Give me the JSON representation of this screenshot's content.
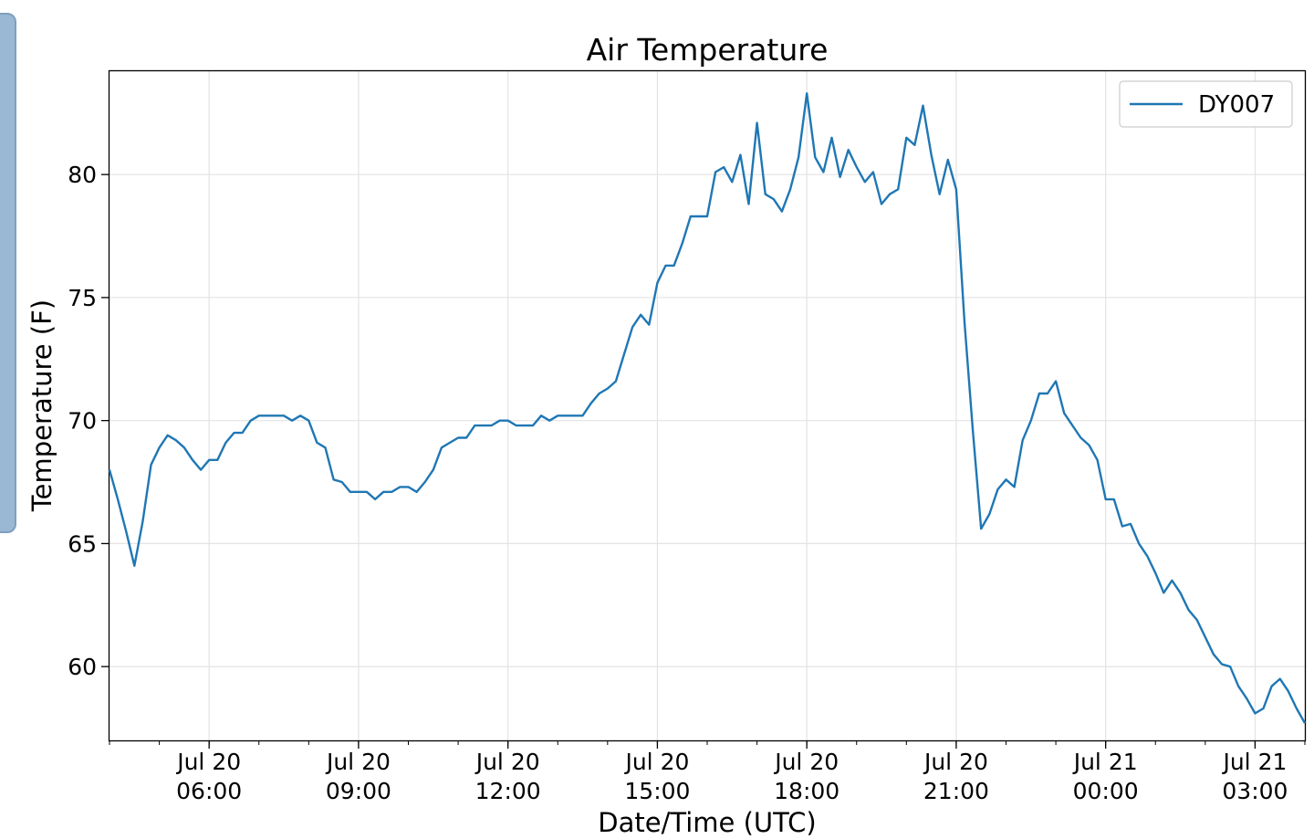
{
  "chart_data": {
    "type": "line",
    "title": "Air Temperature",
    "xlabel": "Date/Time (UTC)",
    "ylabel": "Temperature (F)",
    "ylim": [
      57.0,
      84.2
    ],
    "xlim": [
      "2020-07-20T04:00",
      "2020-07-21T04:00"
    ],
    "grid": true,
    "legend_position": "top-right",
    "x_ticks": [
      {
        "value": "2020-07-20T06:00",
        "line1": "Jul 20",
        "line2": "06:00"
      },
      {
        "value": "2020-07-20T09:00",
        "line1": "Jul 20",
        "line2": "09:00"
      },
      {
        "value": "2020-07-20T12:00",
        "line1": "Jul 20",
        "line2": "12:00"
      },
      {
        "value": "2020-07-20T15:00",
        "line1": "Jul 20",
        "line2": "15:00"
      },
      {
        "value": "2020-07-20T18:00",
        "line1": "Jul 20",
        "line2": "18:00"
      },
      {
        "value": "2020-07-20T21:00",
        "line1": "Jul 20",
        "line2": "21:00"
      },
      {
        "value": "2020-07-21T00:00",
        "line1": "Jul 21",
        "line2": "00:00"
      },
      {
        "value": "2020-07-21T03:00",
        "line1": "Jul 21",
        "line2": "03:00"
      }
    ],
    "y_ticks": [
      "60",
      "65",
      "70",
      "75",
      "80"
    ],
    "series": [
      {
        "name": "DY007",
        "color": "#1f77b4",
        "x": [
          "2020-07-20T04:00",
          "2020-07-20T04:10",
          "2020-07-20T04:20",
          "2020-07-20T04:30",
          "2020-07-20T04:40",
          "2020-07-20T04:50",
          "2020-07-20T05:00",
          "2020-07-20T05:10",
          "2020-07-20T05:20",
          "2020-07-20T05:30",
          "2020-07-20T05:40",
          "2020-07-20T05:50",
          "2020-07-20T06:00",
          "2020-07-20T06:10",
          "2020-07-20T06:20",
          "2020-07-20T06:30",
          "2020-07-20T06:40",
          "2020-07-20T06:50",
          "2020-07-20T07:00",
          "2020-07-20T07:10",
          "2020-07-20T07:20",
          "2020-07-20T07:30",
          "2020-07-20T07:40",
          "2020-07-20T07:50",
          "2020-07-20T08:00",
          "2020-07-20T08:10",
          "2020-07-20T08:20",
          "2020-07-20T08:30",
          "2020-07-20T08:40",
          "2020-07-20T08:50",
          "2020-07-20T09:00",
          "2020-07-20T09:10",
          "2020-07-20T09:20",
          "2020-07-20T09:30",
          "2020-07-20T09:40",
          "2020-07-20T09:50",
          "2020-07-20T10:00",
          "2020-07-20T10:10",
          "2020-07-20T10:20",
          "2020-07-20T10:30",
          "2020-07-20T10:40",
          "2020-07-20T10:50",
          "2020-07-20T11:00",
          "2020-07-20T11:10",
          "2020-07-20T11:20",
          "2020-07-20T11:30",
          "2020-07-20T11:40",
          "2020-07-20T11:50",
          "2020-07-20T12:00",
          "2020-07-20T12:10",
          "2020-07-20T12:20",
          "2020-07-20T12:30",
          "2020-07-20T12:40",
          "2020-07-20T12:50",
          "2020-07-20T13:00",
          "2020-07-20T13:10",
          "2020-07-20T13:20",
          "2020-07-20T13:30",
          "2020-07-20T13:40",
          "2020-07-20T13:50",
          "2020-07-20T14:00",
          "2020-07-20T14:10",
          "2020-07-20T14:20",
          "2020-07-20T14:30",
          "2020-07-20T14:40",
          "2020-07-20T14:50",
          "2020-07-20T15:00",
          "2020-07-20T15:10",
          "2020-07-20T15:20",
          "2020-07-20T15:30",
          "2020-07-20T15:40",
          "2020-07-20T15:50",
          "2020-07-20T16:00",
          "2020-07-20T16:10",
          "2020-07-20T16:20",
          "2020-07-20T16:30",
          "2020-07-20T16:40",
          "2020-07-20T16:50",
          "2020-07-20T17:00",
          "2020-07-20T17:10",
          "2020-07-20T17:20",
          "2020-07-20T17:30",
          "2020-07-20T17:40",
          "2020-07-20T17:50",
          "2020-07-20T18:00",
          "2020-07-20T18:10",
          "2020-07-20T18:20",
          "2020-07-20T18:30",
          "2020-07-20T18:40",
          "2020-07-20T18:50",
          "2020-07-20T19:00",
          "2020-07-20T19:10",
          "2020-07-20T19:20",
          "2020-07-20T19:30",
          "2020-07-20T19:40",
          "2020-07-20T19:50",
          "2020-07-20T20:00",
          "2020-07-20T20:10",
          "2020-07-20T20:20",
          "2020-07-20T20:30",
          "2020-07-20T20:40",
          "2020-07-20T20:50",
          "2020-07-20T21:00",
          "2020-07-20T21:10",
          "2020-07-20T21:20",
          "2020-07-20T21:30",
          "2020-07-20T21:40",
          "2020-07-20T21:50",
          "2020-07-20T22:00",
          "2020-07-20T22:10",
          "2020-07-20T22:20",
          "2020-07-20T22:30",
          "2020-07-20T22:40",
          "2020-07-20T22:50",
          "2020-07-20T23:00",
          "2020-07-20T23:10",
          "2020-07-20T23:20",
          "2020-07-20T23:30",
          "2020-07-20T23:40",
          "2020-07-20T23:50",
          "2020-07-21T00:00",
          "2020-07-21T00:10",
          "2020-07-21T00:20",
          "2020-07-21T00:30",
          "2020-07-21T00:40",
          "2020-07-21T00:50",
          "2020-07-21T01:00",
          "2020-07-21T01:10",
          "2020-07-21T01:20",
          "2020-07-21T01:30",
          "2020-07-21T01:40",
          "2020-07-21T01:50",
          "2020-07-21T02:00",
          "2020-07-21T02:10",
          "2020-07-21T02:20",
          "2020-07-21T02:30",
          "2020-07-21T02:40",
          "2020-07-21T02:50",
          "2020-07-21T03:00",
          "2020-07-21T03:10",
          "2020-07-21T03:20",
          "2020-07-21T03:30",
          "2020-07-21T03:40",
          "2020-07-21T03:50",
          "2020-07-21T04:00"
        ],
        "y": [
          68.0,
          66.8,
          65.5,
          64.1,
          65.9,
          68.2,
          68.9,
          69.4,
          69.2,
          68.9,
          68.4,
          68.0,
          68.4,
          68.4,
          69.1,
          69.5,
          69.5,
          70.0,
          70.2,
          70.2,
          70.2,
          70.2,
          70.0,
          70.2,
          70.0,
          69.1,
          68.9,
          67.6,
          67.5,
          67.1,
          67.1,
          67.1,
          66.8,
          67.1,
          67.1,
          67.3,
          67.3,
          67.1,
          67.5,
          68.0,
          68.9,
          69.1,
          69.3,
          69.3,
          69.8,
          69.8,
          69.8,
          70.0,
          70.0,
          69.8,
          69.8,
          69.8,
          70.2,
          70.0,
          70.2,
          70.2,
          70.2,
          70.2,
          70.7,
          71.1,
          71.3,
          71.6,
          72.7,
          73.8,
          74.3,
          73.9,
          75.6,
          76.3,
          76.3,
          77.2,
          78.3,
          78.3,
          78.3,
          80.1,
          80.3,
          79.7,
          80.8,
          78.8,
          82.1,
          79.2,
          79.0,
          78.5,
          79.4,
          80.7,
          83.3,
          80.7,
          80.1,
          81.5,
          79.9,
          81.0,
          80.3,
          79.7,
          80.1,
          78.8,
          79.2,
          79.4,
          81.5,
          81.2,
          82.8,
          80.8,
          79.2,
          80.6,
          79.4,
          74.0,
          69.6,
          65.6,
          66.2,
          67.2,
          67.6,
          67.3,
          69.2,
          70.0,
          71.1,
          71.1,
          71.6,
          70.3,
          69.8,
          69.3,
          69.0,
          68.4,
          66.8,
          66.8,
          65.7,
          65.8,
          65.0,
          64.5,
          63.8,
          63.0,
          63.5,
          63.0,
          62.3,
          61.9,
          61.2,
          60.5,
          60.1,
          60.0,
          59.2,
          58.7,
          58.1,
          58.3,
          59.2,
          59.5,
          59.0,
          58.3,
          57.7
        ]
      }
    ]
  }
}
